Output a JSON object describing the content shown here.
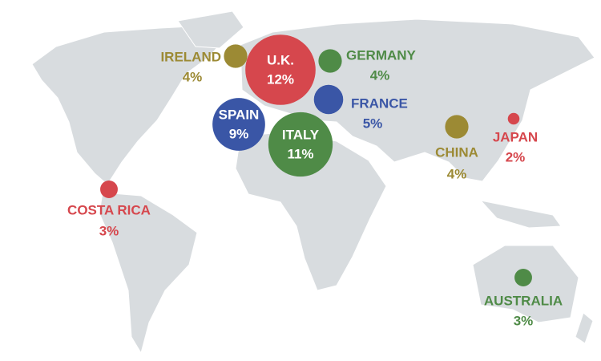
{
  "markers": [
    {
      "label": "U.K.",
      "value": 12,
      "value_label": "12%",
      "color": "#d6474d"
    },
    {
      "label": "ITALY",
      "value": 11,
      "value_label": "11%",
      "color": "#4f8b47"
    },
    {
      "label": "SPAIN",
      "value": 9,
      "value_label": "9%",
      "color": "#3a56a6"
    },
    {
      "label": "FRANCE",
      "value": 5,
      "value_label": "5%",
      "color": "#3a56a6"
    },
    {
      "label": "GERMANY",
      "value": 4,
      "value_label": "4%",
      "color": "#4f8b47"
    },
    {
      "label": "IRELAND",
      "value": 4,
      "value_label": "4%",
      "color": "#9c8a34"
    },
    {
      "label": "CHINA",
      "value": 4,
      "value_label": "4%",
      "color": "#9c8a34"
    },
    {
      "label": "JAPAN",
      "value": 2,
      "value_label": "2%",
      "color": "#d6474d"
    },
    {
      "label": "COSTA RICA",
      "value": 3,
      "value_label": "3%",
      "color": "#d6474d"
    },
    {
      "label": "AUSTRALIA",
      "value": 3,
      "value_label": "3%",
      "color": "#4f8b47"
    }
  ]
}
